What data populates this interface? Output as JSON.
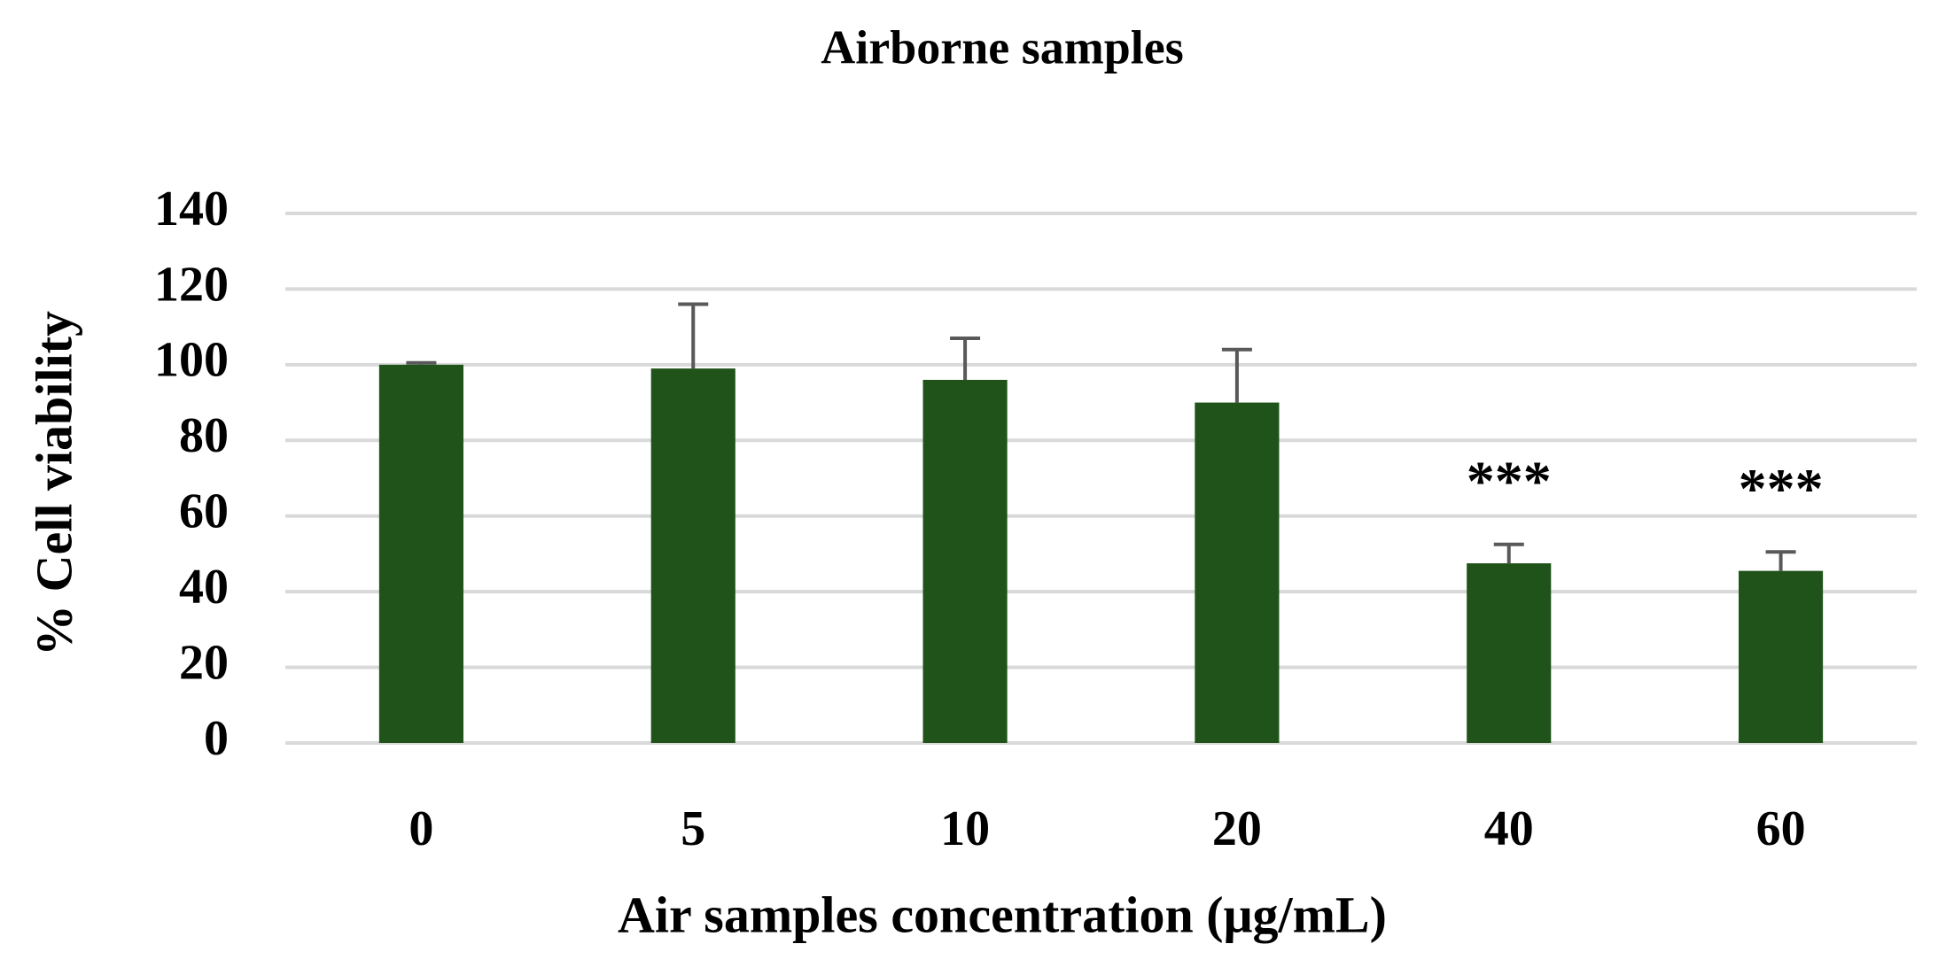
{
  "chart_data": {
    "type": "bar",
    "title": "Airborne samples",
    "x_label": "Air samples concentration (μg/mL)",
    "y_label": "% Cell viability",
    "categories": [
      "0",
      "5",
      "10",
      "20",
      "40",
      "60"
    ],
    "values": [
      100,
      99,
      96,
      90,
      47.5,
      45.5
    ],
    "errors": [
      0.5,
      17,
      11,
      14,
      5,
      5
    ],
    "color": "#1f5319",
    "error_color": "#595959",
    "annotations": [
      {
        "category": "40",
        "text": "***"
      },
      {
        "category": "60",
        "text": "***"
      }
    ],
    "ylim": [
      0,
      140
    ],
    "yticks": [
      0,
      20,
      40,
      60,
      80,
      100,
      120,
      140
    ],
    "grid": true
  }
}
